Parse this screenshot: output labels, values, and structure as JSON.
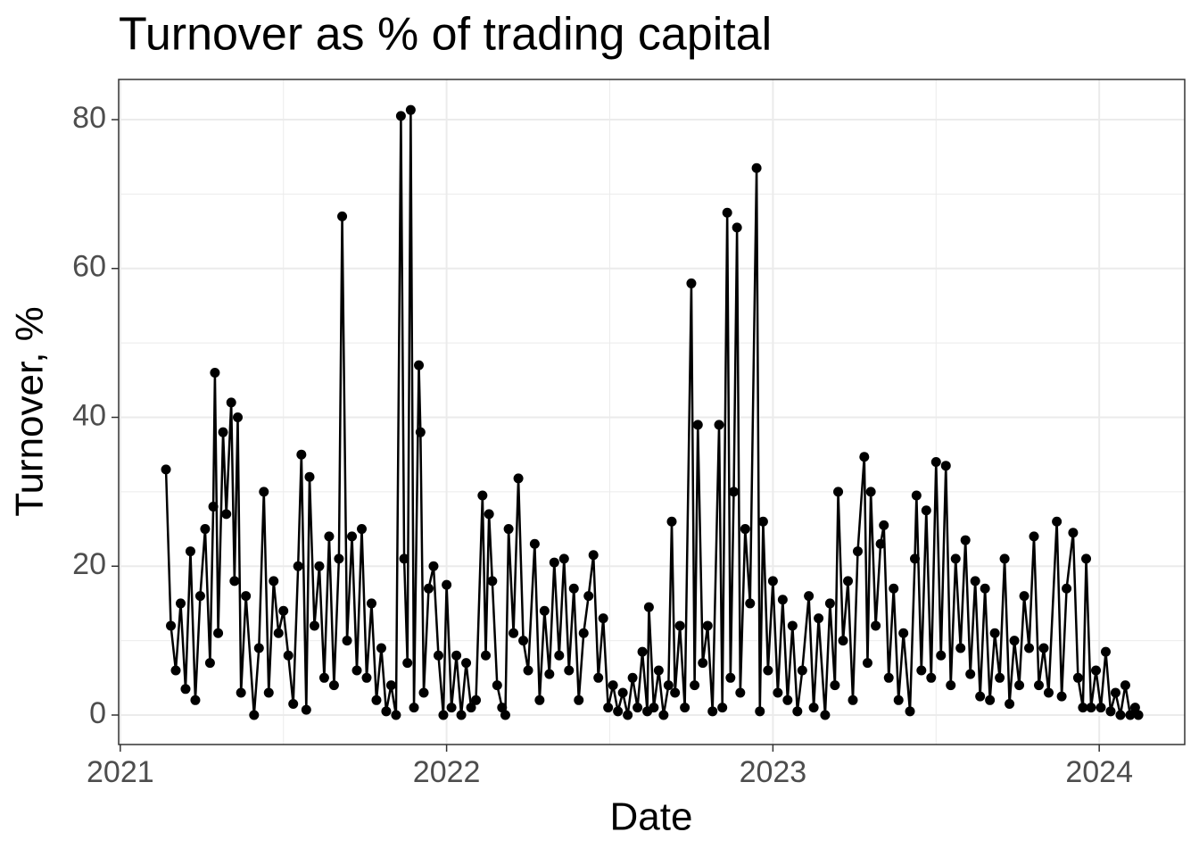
{
  "chart_data": {
    "type": "line",
    "title": "Turnover as % of trading capital",
    "x_label": "Date",
    "y_label": "Turnover, %",
    "x": [
      2021.14,
      2021.155,
      2021.17,
      2021.185,
      2021.2,
      2021.215,
      2021.23,
      2021.245,
      2021.26,
      2021.275,
      2021.285,
      2021.29,
      2021.3,
      2021.315,
      2021.325,
      2021.34,
      2021.35,
      2021.36,
      2021.37,
      2021.385,
      2021.41,
      2021.425,
      2021.44,
      2021.455,
      2021.47,
      2021.485,
      2021.5,
      2021.515,
      2021.53,
      2021.545,
      2021.555,
      2021.57,
      2021.58,
      2021.595,
      2021.61,
      2021.625,
      2021.64,
      2021.655,
      2021.67,
      2021.68,
      2021.695,
      2021.71,
      2021.725,
      2021.74,
      2021.755,
      2021.77,
      2021.785,
      2021.8,
      2021.815,
      2021.83,
      2021.845,
      2021.86,
      2021.87,
      2021.88,
      2021.89,
      2021.9,
      2021.915,
      2021.92,
      2021.93,
      2021.945,
      2021.96,
      2021.975,
      2021.99,
      2022.0,
      2022.015,
      2022.03,
      2022.045,
      2022.06,
      2022.075,
      2022.09,
      2022.11,
      2022.12,
      2022.13,
      2022.14,
      2022.155,
      2022.17,
      2022.18,
      2022.19,
      2022.205,
      2022.22,
      2022.235,
      2022.25,
      2022.27,
      2022.285,
      2022.3,
      2022.315,
      2022.33,
      2022.345,
      2022.36,
      2022.375,
      2022.39,
      2022.405,
      2022.42,
      2022.435,
      2022.45,
      2022.465,
      2022.48,
      2022.495,
      2022.51,
      2022.525,
      2022.54,
      2022.555,
      2022.57,
      2022.585,
      2022.6,
      2022.615,
      2022.62,
      2022.635,
      2022.65,
      2022.665,
      2022.68,
      2022.69,
      2022.7,
      2022.715,
      2022.73,
      2022.75,
      2022.76,
      2022.77,
      2022.785,
      2022.8,
      2022.815,
      2022.835,
      2022.845,
      2022.86,
      2022.87,
      2022.88,
      2022.89,
      2022.9,
      2022.915,
      2022.93,
      2022.95,
      2022.96,
      2022.97,
      2022.985,
      2023.0,
      2023.015,
      2023.03,
      2023.045,
      2023.06,
      2023.075,
      2023.09,
      2023.11,
      2023.125,
      2023.14,
      2023.16,
      2023.175,
      2023.19,
      2023.2,
      2023.215,
      2023.23,
      2023.245,
      2023.26,
      2023.28,
      2023.29,
      2023.3,
      2023.315,
      2023.33,
      2023.34,
      2023.355,
      2023.37,
      2023.385,
      2023.4,
      2023.42,
      2023.435,
      2023.44,
      2023.455,
      2023.47,
      2023.485,
      2023.5,
      2023.515,
      2023.53,
      2023.545,
      2023.56,
      2023.575,
      2023.59,
      2023.605,
      2023.62,
      2023.635,
      2023.65,
      2023.665,
      2023.68,
      2023.695,
      2023.71,
      2023.725,
      2023.74,
      2023.755,
      2023.77,
      2023.785,
      2023.8,
      2023.815,
      2023.83,
      2023.845,
      2023.87,
      2023.885,
      2023.9,
      2023.92,
      2023.935,
      2023.95,
      2023.96,
      2023.975,
      2023.99,
      2024.005,
      2024.02,
      2024.035,
      2024.05,
      2024.065,
      2024.08,
      2024.095,
      2024.11,
      2024.12
    ],
    "values": [
      33,
      12,
      6,
      15,
      3.5,
      22,
      2,
      16,
      25,
      7,
      28,
      46,
      11,
      38,
      27,
      42,
      18,
      40,
      3,
      16,
      0,
      9,
      30,
      3,
      18,
      11,
      14,
      8,
      1.5,
      20,
      35,
      0.7,
      32,
      12,
      20,
      5,
      24,
      4,
      21,
      67,
      10,
      24,
      6,
      25,
      5,
      15,
      2,
      9,
      0.5,
      4,
      0,
      80.5,
      21,
      7,
      81.3,
      1,
      47,
      38,
      3,
      17,
      20,
      8,
      0,
      17.5,
      1,
      8,
      0,
      7,
      1,
      2,
      29.5,
      8,
      27,
      18,
      4,
      1,
      0,
      25,
      11,
      31.8,
      10,
      6,
      23,
      2,
      14,
      5.5,
      20.5,
      8,
      21,
      6,
      17,
      2,
      11,
      16,
      21.5,
      5,
      13,
      1,
      4,
      0.5,
      3,
      0,
      5,
      1,
      8.5,
      0.5,
      14.5,
      1,
      6,
      0,
      4,
      26,
      3,
      12,
      1,
      58,
      4,
      39,
      7,
      12,
      0.5,
      39,
      1,
      67.5,
      5,
      30,
      65.5,
      3,
      25,
      15,
      73.5,
      0.5,
      26,
      6,
      18,
      3,
      15.5,
      2,
      12,
      0.5,
      6,
      16,
      1,
      13,
      0,
      15,
      4,
      30,
      10,
      18,
      2,
      22,
      34.7,
      7,
      30,
      12,
      23,
      25.5,
      5,
      17,
      2,
      11,
      0.5,
      21,
      29.5,
      6,
      27.5,
      5,
      34,
      8,
      33.5,
      4,
      21,
      9,
      23.5,
      5.5,
      18,
      2.5,
      17,
      2,
      11,
      5,
      21,
      1.5,
      10,
      4,
      16,
      9,
      24,
      4,
      9,
      3,
      26,
      2.5,
      17,
      24.5,
      5,
      1,
      21,
      1,
      6,
      1,
      8.5,
      0.5,
      3,
      0,
      4,
      0,
      1,
      0
    ],
    "color": "#000000",
    "xlim": [
      2020.995,
      2024.262
    ],
    "xticks": [
      2021,
      2022,
      2023,
      2024
    ],
    "ylim": [
      -3.96,
      85.4
    ],
    "yticks": [
      0,
      20,
      40,
      60,
      80
    ],
    "grid": true
  }
}
